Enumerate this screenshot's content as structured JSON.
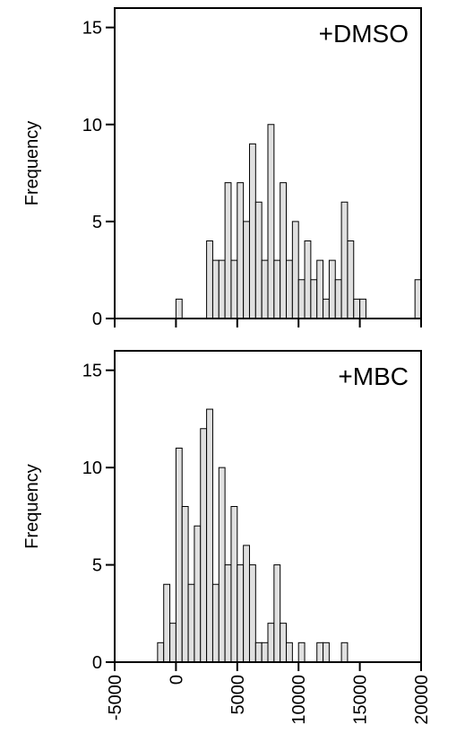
{
  "chart_data": [
    {
      "type": "bar",
      "panel_label": "+DMSO",
      "ylabel": "Frequency",
      "xlabel": "",
      "xlim": [
        -5000,
        20000
      ],
      "ylim": [
        0,
        16
      ],
      "yticks": [
        "0",
        "5",
        "10",
        "15"
      ],
      "bin_width": 500,
      "bins": [
        {
          "x0": 0,
          "x1": 500,
          "value": 1
        },
        {
          "x0": 2500,
          "x1": 3000,
          "value": 4
        },
        {
          "x0": 3000,
          "x1": 3500,
          "value": 3
        },
        {
          "x0": 3500,
          "x1": 4000,
          "value": 3
        },
        {
          "x0": 4000,
          "x1": 4500,
          "value": 7
        },
        {
          "x0": 4500,
          "x1": 5000,
          "value": 3
        },
        {
          "x0": 5000,
          "x1": 5500,
          "value": 7
        },
        {
          "x0": 5500,
          "x1": 6000,
          "value": 5
        },
        {
          "x0": 6000,
          "x1": 6500,
          "value": 9
        },
        {
          "x0": 6500,
          "x1": 7000,
          "value": 6
        },
        {
          "x0": 7000,
          "x1": 7500,
          "value": 3
        },
        {
          "x0": 7500,
          "x1": 8000,
          "value": 10
        },
        {
          "x0": 8000,
          "x1": 8500,
          "value": 3
        },
        {
          "x0": 8500,
          "x1": 9000,
          "value": 7
        },
        {
          "x0": 9000,
          "x1": 9500,
          "value": 3
        },
        {
          "x0": 9500,
          "x1": 10000,
          "value": 5
        },
        {
          "x0": 10000,
          "x1": 10500,
          "value": 2
        },
        {
          "x0": 10500,
          "x1": 11000,
          "value": 4
        },
        {
          "x0": 11000,
          "x1": 11500,
          "value": 2
        },
        {
          "x0": 11500,
          "x1": 12000,
          "value": 3
        },
        {
          "x0": 12000,
          "x1": 12500,
          "value": 1
        },
        {
          "x0": 12500,
          "x1": 13000,
          "value": 3
        },
        {
          "x0": 13000,
          "x1": 13500,
          "value": 2
        },
        {
          "x0": 13500,
          "x1": 14000,
          "value": 6
        },
        {
          "x0": 14000,
          "x1": 14500,
          "value": 4
        },
        {
          "x0": 14500,
          "x1": 15000,
          "value": 1
        },
        {
          "x0": 15000,
          "x1": 15500,
          "value": 1
        },
        {
          "x0": 19500,
          "x1": 20000,
          "value": 2
        }
      ]
    },
    {
      "type": "bar",
      "panel_label": "+MBC",
      "ylabel": "Frequency",
      "xlabel": "",
      "xlim": [
        -5000,
        20000
      ],
      "ylim": [
        0,
        16
      ],
      "yticks": [
        "0",
        "5",
        "10",
        "15"
      ],
      "xticks": [
        "-5000",
        "0",
        "5000",
        "10000",
        "15000",
        "20000"
      ],
      "bin_width": 500,
      "bins": [
        {
          "x0": -1500,
          "x1": -1000,
          "value": 1
        },
        {
          "x0": -1000,
          "x1": -500,
          "value": 4
        },
        {
          "x0": -500,
          "x1": 0,
          "value": 2
        },
        {
          "x0": 0,
          "x1": 500,
          "value": 11
        },
        {
          "x0": 500,
          "x1": 1000,
          "value": 8
        },
        {
          "x0": 1000,
          "x1": 1500,
          "value": 4
        },
        {
          "x0": 1500,
          "x1": 2000,
          "value": 7
        },
        {
          "x0": 2000,
          "x1": 2500,
          "value": 12
        },
        {
          "x0": 2500,
          "x1": 3000,
          "value": 13
        },
        {
          "x0": 3000,
          "x1": 3500,
          "value": 4
        },
        {
          "x0": 3500,
          "x1": 4000,
          "value": 10
        },
        {
          "x0": 4000,
          "x1": 4500,
          "value": 5
        },
        {
          "x0": 4500,
          "x1": 5000,
          "value": 8
        },
        {
          "x0": 5000,
          "x1": 5500,
          "value": 5
        },
        {
          "x0": 5500,
          "x1": 6000,
          "value": 6
        },
        {
          "x0": 6000,
          "x1": 6500,
          "value": 5
        },
        {
          "x0": 6500,
          "x1": 7000,
          "value": 1
        },
        {
          "x0": 7000,
          "x1": 7500,
          "value": 1
        },
        {
          "x0": 7500,
          "x1": 8000,
          "value": 2
        },
        {
          "x0": 8000,
          "x1": 8500,
          "value": 5
        },
        {
          "x0": 8500,
          "x1": 9000,
          "value": 2
        },
        {
          "x0": 9000,
          "x1": 9500,
          "value": 1
        },
        {
          "x0": 10000,
          "x1": 10500,
          "value": 1
        },
        {
          "x0": 11500,
          "x1": 12000,
          "value": 1
        },
        {
          "x0": 12000,
          "x1": 12500,
          "value": 1
        },
        {
          "x0": 13500,
          "x1": 14000,
          "value": 1
        }
      ]
    }
  ],
  "colors": {
    "bar_fill": "#e0e0e0",
    "bar_stroke": "#000000",
    "axis": "#000000"
  }
}
